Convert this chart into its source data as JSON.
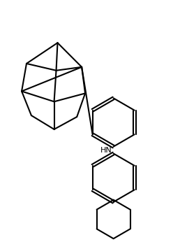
{
  "background_color": "#ffffff",
  "line_color": "#000000",
  "line_width": 1.5,
  "fig_width": 2.58,
  "fig_height": 3.46,
  "dpi": 100
}
